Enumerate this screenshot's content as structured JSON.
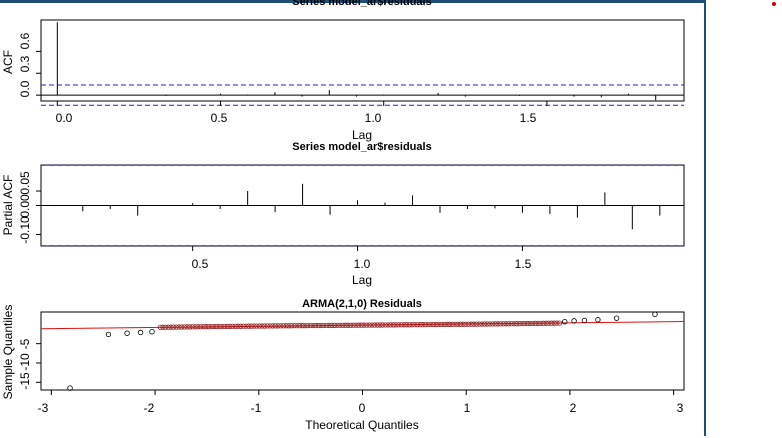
{
  "colors": {
    "ci_line": "#2222cc",
    "spike": "#000000",
    "qq_line": "#e01010",
    "qq_points": "#8a1a1a",
    "frame": "#1f4e79"
  },
  "chart_data": [
    {
      "type": "bar",
      "title": "Series model_ar$residuals",
      "xlabel": "Lag",
      "ylabel": "ACF",
      "xlim": [
        -0.05,
        1.92
      ],
      "ylim": [
        -0.08,
        1.03
      ],
      "x_ticks": [
        "0.0",
        "0.5",
        "1.0",
        "1.5"
      ],
      "y_ticks": [
        "0.0",
        "0.3",
        "0.6"
      ],
      "ci": [
        0.139,
        -0.139
      ],
      "x": [
        0.0,
        0.0833,
        0.1667,
        0.25,
        0.3333,
        0.4167,
        0.5,
        0.5833,
        0.6667,
        0.75,
        0.8333,
        0.9167,
        1.0,
        1.0833,
        1.1667,
        1.25,
        1.3333,
        1.4167,
        1.5,
        1.5833,
        1.6667,
        1.75,
        1.8333
      ],
      "values": [
        1.0,
        0.0,
        0.0,
        0.0,
        -0.01,
        0.0,
        0.02,
        0.01,
        0.04,
        -0.02,
        0.07,
        -0.02,
        0.01,
        0.0,
        0.03,
        -0.02,
        0.0,
        -0.01,
        0.0,
        -0.02,
        -0.03,
        0.02,
        -0.07
      ]
    },
    {
      "type": "bar",
      "title": "Series model_ar$residuals",
      "xlabel": "Lag",
      "ylabel": "Partial ACF",
      "xlim": [
        0.04,
        1.99
      ],
      "ylim": [
        -0.14,
        0.14
      ],
      "x_ticks": [
        "0.5",
        "1.0",
        "1.5"
      ],
      "y_ticks": [
        "-0.10",
        "0.00",
        "0.05"
      ],
      "ci": [
        0.139,
        -0.139
      ],
      "x": [
        0.0833,
        0.1667,
        0.25,
        0.3333,
        0.4167,
        0.5,
        0.5833,
        0.6667,
        0.75,
        0.8333,
        0.9167,
        1.0,
        1.0833,
        1.1667,
        1.25,
        1.3333,
        1.4167,
        1.5,
        1.5833,
        1.6667,
        1.75,
        1.8333,
        1.9167
      ],
      "values": [
        -0.002,
        -0.02,
        -0.012,
        -0.035,
        0.0,
        0.008,
        -0.012,
        0.05,
        -0.023,
        0.075,
        -0.032,
        0.018,
        0.01,
        0.035,
        -0.025,
        -0.012,
        -0.01,
        -0.025,
        -0.03,
        -0.042,
        0.045,
        -0.082,
        -0.035
      ]
    },
    {
      "type": "scatter",
      "title": "ARMA(2,1,0) Residuals",
      "xlabel": "Theoretical Quantiles",
      "ylabel": "Sample Quantiles",
      "xlim": [
        -3.1,
        3.1
      ],
      "ylim": [
        -17,
        3.2
      ],
      "x_ticks": [
        "-3",
        "-2",
        "-1",
        "0",
        "1",
        "2",
        "3"
      ],
      "y_ticks": [
        "-15",
        "-10",
        "-5"
      ],
      "reference_line": {
        "intercept": -0.2,
        "slope": 0.3
      },
      "tail_points": [
        [
          -2.82,
          -16.5
        ],
        [
          -2.45,
          -2.6
        ],
        [
          -2.27,
          -2.3
        ],
        [
          -2.14,
          -2.1
        ],
        [
          -2.03,
          -1.9
        ],
        [
          1.95,
          0.7
        ],
        [
          2.04,
          0.9
        ],
        [
          2.14,
          1.0
        ],
        [
          2.27,
          1.2
        ],
        [
          2.45,
          1.6
        ],
        [
          2.82,
          2.6
        ]
      ],
      "body_range": [
        -1.95,
        1.9
      ]
    }
  ]
}
